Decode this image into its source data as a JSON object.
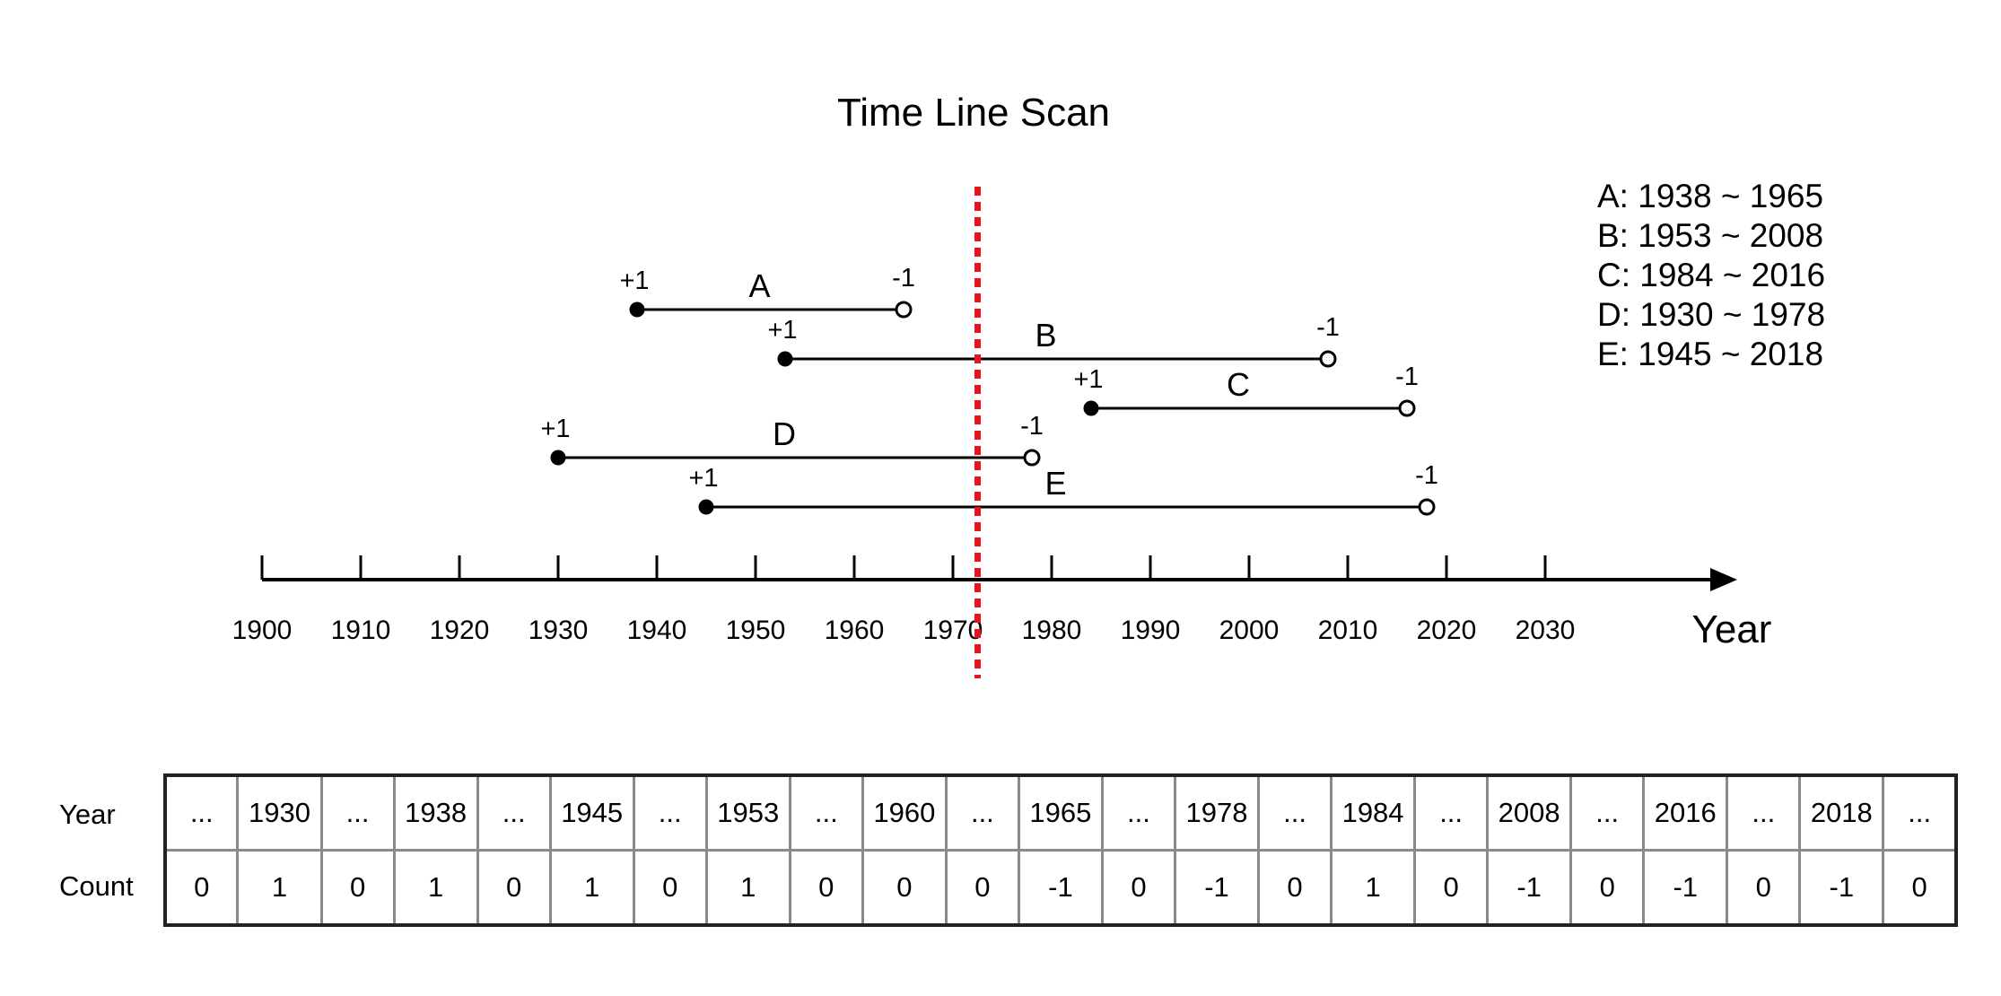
{
  "title": "Time Line Scan",
  "axis": {
    "label": "Year",
    "ticks": [
      "1900",
      "1910",
      "1920",
      "1930",
      "1940",
      "1950",
      "1960",
      "1970",
      "1980",
      "1990",
      "2000",
      "2010",
      "2020",
      "2030"
    ],
    "range": [
      1900,
      2030
    ]
  },
  "scan_line_year": 1972.5,
  "intervals": [
    {
      "name": "A",
      "start": 1938,
      "end": 1965,
      "start_label": "+1",
      "end_label": "-1"
    },
    {
      "name": "B",
      "start": 1953,
      "end": 2008,
      "start_label": "+1",
      "end_label": "-1"
    },
    {
      "name": "C",
      "start": 1984,
      "end": 2016,
      "start_label": "+1",
      "end_label": "-1"
    },
    {
      "name": "D",
      "start": 1930,
      "end": 1978,
      "start_label": "+1",
      "end_label": "-1"
    },
    {
      "name": "E",
      "start": 1945,
      "end": 2018,
      "start_label": "+1",
      "end_label": "-1"
    }
  ],
  "legend": [
    "A: 1938 ~ 1965",
    "B: 1953 ~ 2008",
    "C: 1984 ~ 2016",
    "D: 1930 ~ 1978",
    "E: 1945 ~ 2018"
  ],
  "table": {
    "row_labels": {
      "year": "Year",
      "count": "Count"
    },
    "years": [
      "...",
      "1930",
      "...",
      "1938",
      "...",
      "1945",
      "...",
      "1953",
      "...",
      "1960",
      "...",
      "1965",
      "...",
      "1978",
      "...",
      "1984",
      "...",
      "2008",
      "...",
      "2016",
      "...",
      "2018",
      "..."
    ],
    "counts": [
      "0",
      "1",
      "0",
      "1",
      "0",
      "1",
      "0",
      "1",
      "0",
      "0",
      "0",
      "-1",
      "0",
      "-1",
      "0",
      "1",
      "0",
      "-1",
      "0",
      "-1",
      "0",
      "-1",
      "0"
    ]
  },
  "colors": {
    "scan_line": "#e8141b",
    "line": "#000000"
  }
}
